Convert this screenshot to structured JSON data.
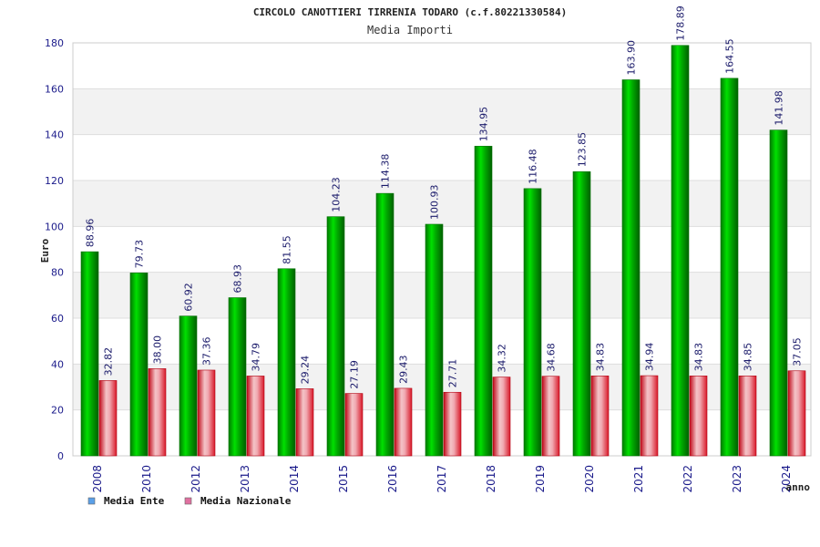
{
  "chart_data": {
    "type": "bar",
    "title": "CIRCOLO CANOTTIERI TIRRENIA TODARO (c.f.80221330584)",
    "subtitle": "Media Importi",
    "ylabel": "Euro",
    "xlabel": "anno",
    "ylim": [
      0,
      180
    ],
    "yticks": [
      "0",
      "20",
      "40",
      "60",
      "80",
      "100",
      "120",
      "140",
      "160",
      "180"
    ],
    "categories": [
      "2008",
      "2010",
      "2012",
      "2013",
      "2014",
      "2015",
      "2016",
      "2017",
      "2018",
      "2019",
      "2020",
      "2021",
      "2022",
      "2023",
      "2024"
    ],
    "series": [
      {
        "name": "Media Ente",
        "legend_color": "#5aa0e8",
        "color": "#00c000",
        "values": [
          88.96,
          79.73,
          60.92,
          68.93,
          81.55,
          104.23,
          114.38,
          100.93,
          134.95,
          116.48,
          123.85,
          163.9,
          178.89,
          164.55,
          141.98
        ],
        "labels": [
          "88.96",
          "79.73",
          "60.92",
          "68.93",
          "81.55",
          "104.23",
          "114.38",
          "100.93",
          "134.95",
          "116.48",
          "123.85",
          "163.90",
          "178.89",
          "164.55",
          "141.98"
        ]
      },
      {
        "name": "Media Nazionale",
        "legend_color": "#e070a0",
        "color": "#e02030",
        "values": [
          32.82,
          38.0,
          37.36,
          34.79,
          29.24,
          27.19,
          29.43,
          27.71,
          34.32,
          34.68,
          34.83,
          34.94,
          34.83,
          34.85,
          37.05
        ],
        "labels": [
          "32.82",
          "38.00",
          "37.36",
          "34.79",
          "29.24",
          "27.19",
          "29.43",
          "27.71",
          "34.32",
          "34.68",
          "34.83",
          "34.94",
          "34.83",
          "34.85",
          "37.05"
        ]
      }
    ],
    "grid": true,
    "legend_position": "bottom-left"
  }
}
